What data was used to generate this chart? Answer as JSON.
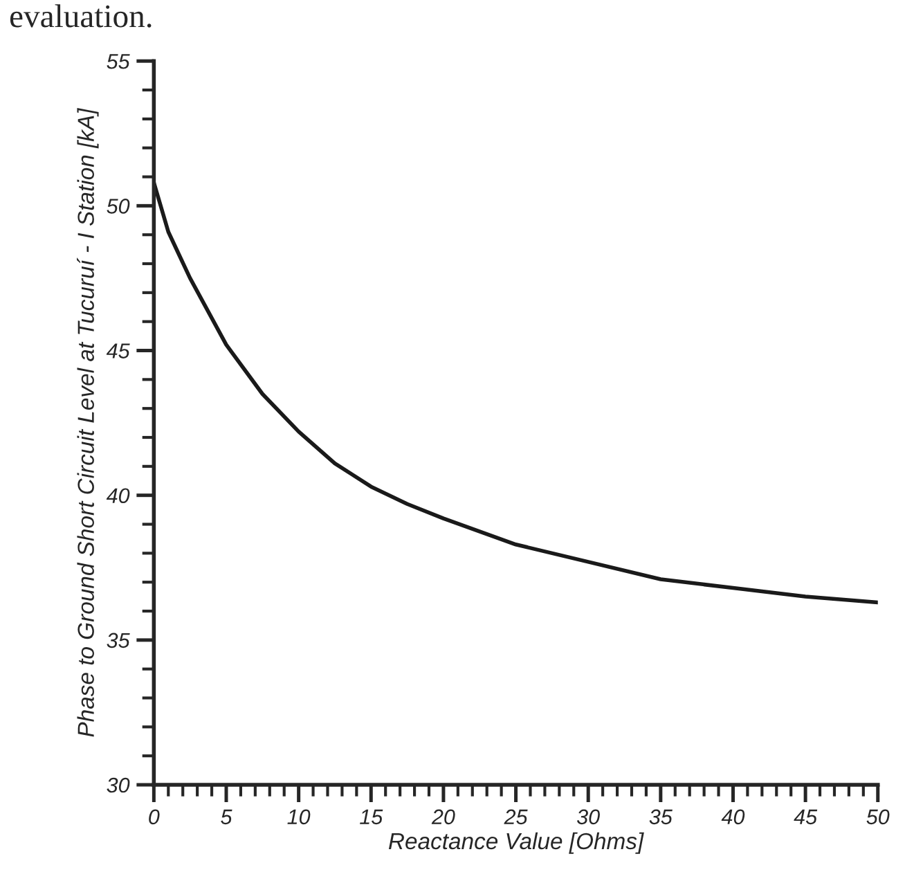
{
  "chart_data": {
    "type": "line",
    "xlabel": "Reactance Value [Ohms]",
    "ylabel": "Phase to Ground Short Circuit Level at Tucuruí - I Station [kA]",
    "annotations": [
      "evaluation."
    ],
    "x": [
      0,
      1,
      2.5,
      5,
      7.5,
      10,
      12.5,
      15,
      17.5,
      20,
      25,
      30,
      35,
      40,
      45,
      50
    ],
    "series": [
      {
        "color": "#1a1a1a",
        "values": [
          50.8,
          49.1,
          47.5,
          45.2,
          43.5,
          42.2,
          41.1,
          40.3,
          39.7,
          39.2,
          38.3,
          37.7,
          37.1,
          36.8,
          36.5,
          36.3
        ]
      }
    ],
    "xlim": [
      0,
      50
    ],
    "ylim": [
      30,
      55
    ],
    "xticks": [
      0,
      {
        "value": 1,
        "label": null
      },
      {
        "value": 2,
        "label": null
      },
      {
        "value": 3,
        "label": null
      },
      {
        "value": 4,
        "label": null
      },
      5,
      {
        "value": 6,
        "label": null
      },
      {
        "value": 7,
        "label": null
      },
      {
        "value": 8,
        "label": null
      },
      {
        "value": 9,
        "label": null
      },
      10,
      {
        "value": 11,
        "label": null
      },
      {
        "value": 12,
        "label": null
      },
      {
        "value": 13,
        "label": null
      },
      {
        "value": 14,
        "label": null
      },
      15,
      {
        "value": 16,
        "label": null
      },
      {
        "value": 17,
        "label": null
      },
      {
        "value": 18,
        "label": null
      },
      {
        "value": 19,
        "label": null
      },
      20,
      {
        "value": 21,
        "label": null
      },
      {
        "value": 22,
        "label": null
      },
      {
        "value": 23,
        "label": null
      },
      {
        "value": 24,
        "label": null
      },
      25,
      {
        "value": 26,
        "label": null
      },
      {
        "value": 27,
        "label": null
      },
      {
        "value": 28,
        "label": null
      },
      {
        "value": 29,
        "label": null
      },
      30,
      {
        "value": 31,
        "label": null
      },
      {
        "value": 32,
        "label": null
      },
      {
        "value": 33,
        "label": null
      },
      {
        "value": 34,
        "label": null
      },
      35,
      {
        "value": 36,
        "label": null
      },
      {
        "value": 37,
        "label": null
      },
      {
        "value": 38,
        "label": null
      },
      {
        "value": 39,
        "label": null
      },
      40,
      {
        "value": 41,
        "label": null
      },
      {
        "value": 42,
        "label": null
      },
      {
        "value": 43,
        "label": null
      },
      {
        "value": 44,
        "label": null
      },
      45,
      {
        "value": 46,
        "label": null
      },
      {
        "value": 47,
        "label": null
      },
      {
        "value": 48,
        "label": null
      },
      {
        "value": 49,
        "label": null
      },
      50
    ],
    "yticks": [
      30,
      {
        "value": 31,
        "label": null
      },
      {
        "value": 32,
        "label": null
      },
      {
        "value": 33,
        "label": null
      },
      {
        "value": 34,
        "label": null
      },
      35,
      {
        "value": 36,
        "label": null
      },
      {
        "value": 37,
        "label": null
      },
      {
        "value": 38,
        "label": null
      },
      {
        "value": 39,
        "label": null
      },
      40,
      {
        "value": 41,
        "label": null
      },
      {
        "value": 42,
        "label": null
      },
      {
        "value": 43,
        "label": null
      },
      {
        "value": 44,
        "label": null
      },
      45,
      {
        "value": 46,
        "label": null
      },
      {
        "value": 47,
        "label": null
      },
      {
        "value": 48,
        "label": null
      },
      {
        "value": 49,
        "label": null
      },
      50,
      {
        "value": 51,
        "label": null
      },
      {
        "value": 52,
        "label": null
      },
      {
        "value": 53,
        "label": null
      },
      {
        "value": 54,
        "label": null
      },
      55
    ],
    "grid": false,
    "legend": false,
    "marker": "none",
    "line_style": "solid"
  }
}
